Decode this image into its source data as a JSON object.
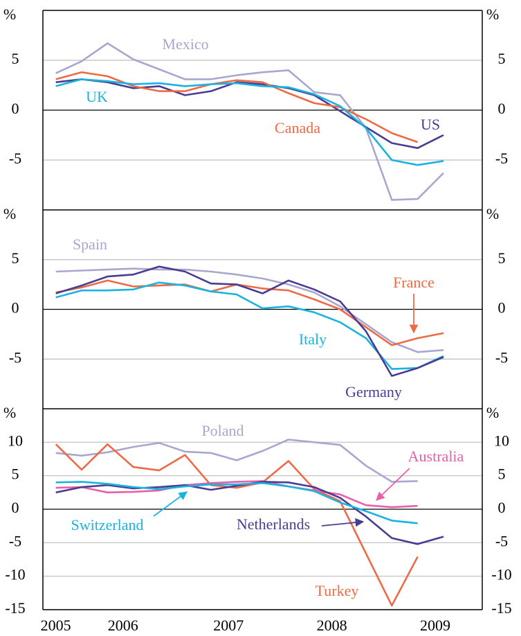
{
  "chart_data": [
    {
      "type": "line",
      "y_unit": "%",
      "ylim": [
        -10,
        10
      ],
      "yticks": [
        -5,
        0,
        5
      ],
      "xlim": [
        2005.625,
        2009.875
      ],
      "grid": true,
      "x": [
        2005.75,
        2006,
        2006.25,
        2006.5,
        2006.75,
        2007,
        2007.25,
        2007.5,
        2007.75,
        2008,
        2008.25,
        2008.5,
        2008.75,
        2009,
        2009.25,
        2009.5
      ],
      "series": [
        {
          "name": "Mexico",
          "color": "#a7a7d0",
          "values": [
            3.7,
            4.9,
            6.7,
            5.1,
            4.1,
            3.1,
            3.1,
            3.5,
            3.8,
            4.0,
            1.8,
            1.5,
            -1.8,
            -9.0,
            -8.9,
            -6.3
          ]
        },
        {
          "name": "US",
          "color": "#4a3d91",
          "values": [
            2.8,
            3.1,
            2.8,
            2.2,
            2.4,
            1.5,
            1.9,
            2.8,
            2.6,
            2.2,
            1.5,
            -0.1,
            -1.7,
            -3.3,
            -3.8,
            -2.5
          ]
        },
        {
          "name": "Canada",
          "color": "#ee6a45",
          "values": [
            3.1,
            3.8,
            3.4,
            2.4,
            1.9,
            1.9,
            2.6,
            3.0,
            2.8,
            1.7,
            0.7,
            0.3,
            -0.9,
            -2.3,
            -3.2,
            null
          ]
        },
        {
          "name": "UK",
          "color": "#19b3e0",
          "values": [
            2.4,
            3.1,
            2.9,
            2.6,
            2.7,
            2.4,
            2.6,
            2.7,
            2.4,
            2.3,
            1.6,
            0.4,
            -1.8,
            -5.0,
            -5.5,
            -5.1
          ]
        }
      ]
    },
    {
      "type": "line",
      "y_unit": "%",
      "ylim": [
        -10,
        10
      ],
      "yticks": [
        -5,
        0,
        5
      ],
      "xlim": [
        2005.625,
        2009.875
      ],
      "grid": true,
      "x": [
        2005.75,
        2006,
        2006.25,
        2006.5,
        2006.75,
        2007,
        2007.25,
        2007.5,
        2007.75,
        2008,
        2008.25,
        2008.5,
        2008.75,
        2009,
        2009.25,
        2009.5
      ],
      "series": [
        {
          "name": "Spain",
          "color": "#a7a7d0",
          "values": [
            3.8,
            3.9,
            4.0,
            4.1,
            4.0,
            4.0,
            3.8,
            3.5,
            3.1,
            2.5,
            1.7,
            0.3,
            -1.5,
            -3.3,
            -4.3,
            -4.1
          ]
        },
        {
          "name": "France",
          "color": "#ee6a45",
          "values": [
            1.7,
            2.2,
            2.9,
            2.3,
            2.4,
            2.5,
            1.8,
            2.5,
            2.1,
            1.9,
            1.0,
            0.0,
            -1.8,
            -3.6,
            -2.9,
            -2.4
          ]
        },
        {
          "name": "Italy",
          "color": "#19b3e0",
          "values": [
            1.2,
            1.9,
            1.9,
            2.0,
            2.7,
            2.4,
            1.8,
            1.5,
            0.1,
            0.3,
            -0.3,
            -1.3,
            -2.9,
            -6.0,
            -5.9,
            -4.7
          ]
        },
        {
          "name": "Germany",
          "color": "#4a3d91",
          "values": [
            1.6,
            2.4,
            3.3,
            3.5,
            4.3,
            3.8,
            2.6,
            2.5,
            1.6,
            2.9,
            2.0,
            0.8,
            -2.2,
            -6.7,
            -5.9,
            -4.8
          ]
        }
      ]
    },
    {
      "type": "line",
      "y_unit": "%",
      "ylim": [
        -15,
        15
      ],
      "yticks": [
        -15,
        -10,
        -5,
        0,
        5,
        10
      ],
      "xlim": [
        2005.625,
        2009.875
      ],
      "grid": true,
      "x": [
        2005.75,
        2006,
        2006.25,
        2006.5,
        2006.75,
        2007,
        2007.25,
        2007.5,
        2007.75,
        2008,
        2008.25,
        2008.5,
        2008.75,
        2009,
        2009.25,
        2009.5
      ],
      "xticks": [
        {
          "value": 2005.75,
          "label": "2005"
        },
        {
          "value": 2006.4,
          "label": "2006"
        },
        {
          "value": 2007.42,
          "label": "2007"
        },
        {
          "value": 2008.42,
          "label": "2008"
        },
        {
          "value": 2009.42,
          "label": "2009"
        }
      ],
      "series": [
        {
          "name": "Poland",
          "color": "#a7a7d0",
          "values": [
            8.4,
            8.0,
            8.5,
            9.3,
            9.9,
            8.6,
            8.4,
            7.3,
            8.7,
            10.4,
            10.0,
            9.6,
            6.5,
            4.1,
            4.2,
            null
          ]
        },
        {
          "name": "Turkey",
          "color": "#ee6a45",
          "values": [
            9.7,
            5.9,
            9.7,
            6.3,
            5.8,
            8.1,
            3.6,
            3.2,
            4.0,
            7.2,
            3.0,
            1.2,
            -6.6,
            -14.4,
            -7.1,
            null
          ]
        },
        {
          "name": "Australia",
          "color": "#e75fa8",
          "values": [
            3.2,
            3.3,
            2.5,
            2.6,
            2.8,
            3.6,
            3.9,
            4.1,
            4.2,
            3.4,
            2.8,
            2.2,
            0.6,
            0.3,
            0.5,
            null
          ]
        },
        {
          "name": "Netherlands",
          "color": "#4a3d91",
          "values": [
            2.5,
            3.3,
            3.6,
            3.1,
            3.3,
            3.6,
            2.9,
            3.5,
            4.1,
            4.0,
            3.3,
            1.7,
            -1.1,
            -4.3,
            -5.2,
            -4.1
          ]
        },
        {
          "name": "Switzerland",
          "color": "#19b3e0",
          "values": [
            4.0,
            4.1,
            3.8,
            3.3,
            3.0,
            3.4,
            3.7,
            3.7,
            3.9,
            3.4,
            2.7,
            1.0,
            -0.3,
            -1.7,
            -2.1,
            null
          ]
        }
      ]
    }
  ]
}
